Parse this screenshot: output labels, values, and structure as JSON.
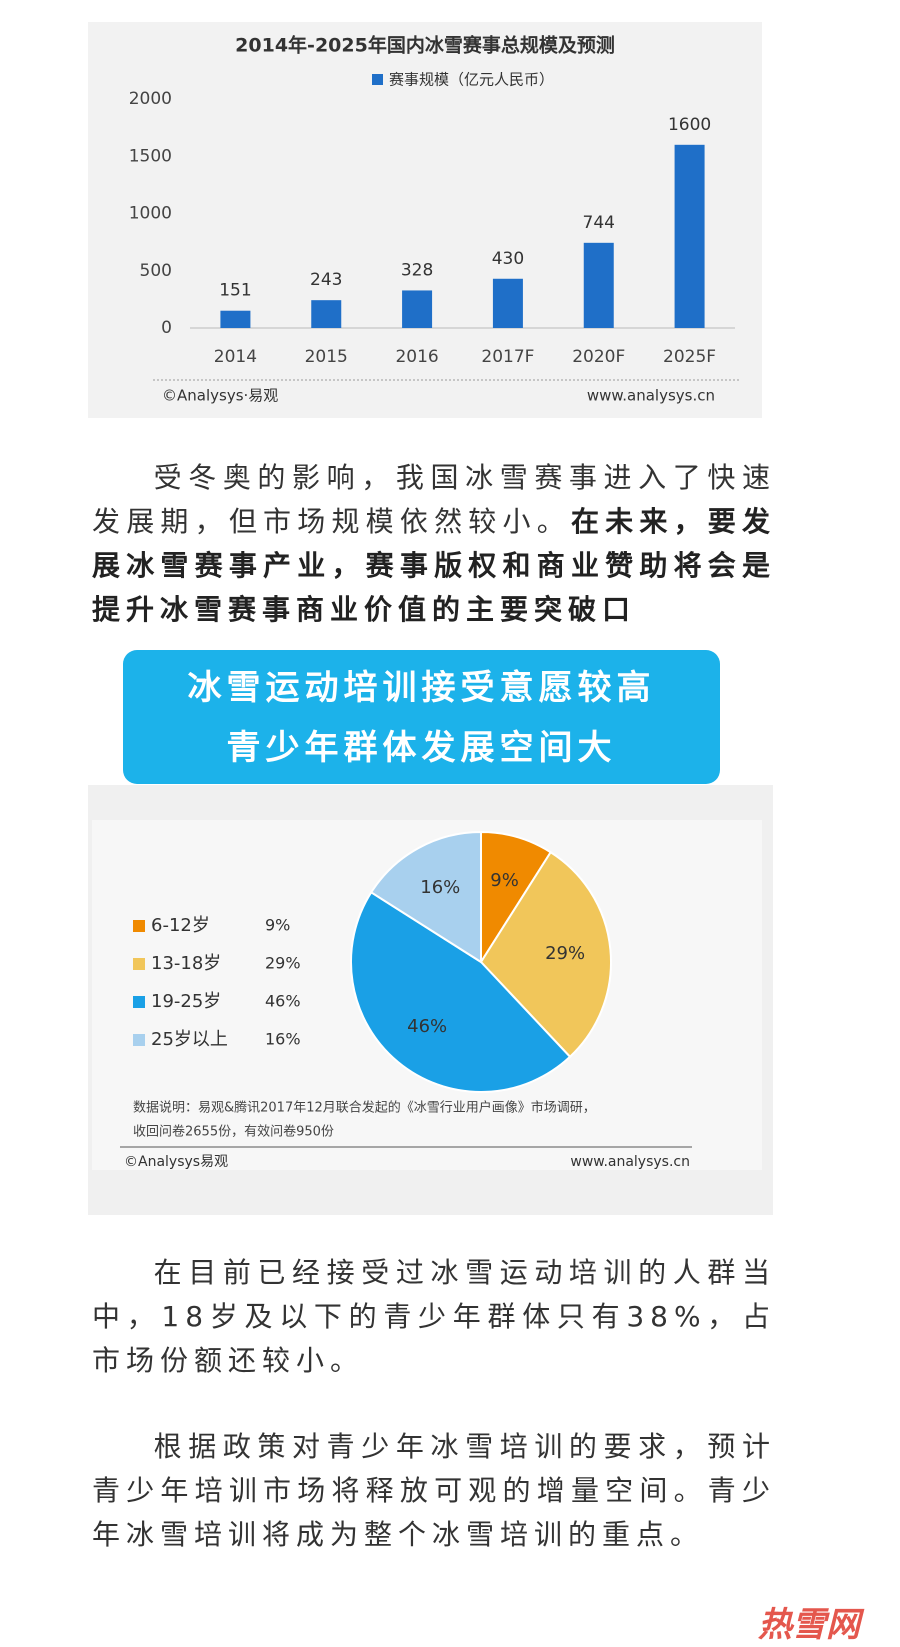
{
  "chart_data": [
    {
      "type": "bar",
      "title": "2014年-2025年国内冰雪赛事总规模及预测",
      "legend": "赛事规模（亿元人民币）",
      "categories": [
        "2014",
        "2015",
        "2016",
        "2017F",
        "2020F",
        "2025F"
      ],
      "values": [
        151,
        243,
        328,
        430,
        744,
        1600
      ],
      "color": "#1f6fc8",
      "ylim": [
        0,
        2000
      ],
      "yticks": [
        0,
        500,
        1000,
        1500,
        2000
      ],
      "source": "©Analysys·易观",
      "website": "www.analysys.cn"
    },
    {
      "type": "pie",
      "categories": [
        "6-12岁",
        "13-18岁",
        "19-25岁",
        "25岁以上"
      ],
      "values": [
        9,
        29,
        46,
        16
      ],
      "value_labels": [
        "9%",
        "29%",
        "46%",
        "16%"
      ],
      "colors": [
        "#f08a00",
        "#f1c65a",
        "#1aa0e6",
        "#a8d0ee"
      ],
      "note": [
        "数据说明：易观&腾讯2017年12月联合发起的《冰雪行业用户画像》市场调研，",
        "收回问卷2655份，有效问卷950份"
      ],
      "source": "©Analysys易观",
      "website": "www.analysys.cn"
    }
  ],
  "paragraphs": [
    {
      "text": "受冬奥的影响，我国冰雪赛事进入了快速发展期，但市场规模依然较小。",
      "emphasis": "在未来，要发展冰雪赛事产业，赛事版权和商业赞助将会是提升冰雪赛事商业价值的主要突破口"
    },
    {
      "text": "在目前已经接受过冰雪运动培训的人群当中，18岁及以下的青少年群体只有38%，占市场份额还较小。"
    },
    {
      "text": "根据政策对青少年冰雪培训的要求，预计青少年培训市场将释放可观的增量空间。青少年冰雪培训将成为整个冰雪培训的重点。"
    }
  ],
  "banner": [
    "冰雪运动培训接受意愿较高",
    "青少年群体发展空间大"
  ],
  "watermark": "热雪网"
}
